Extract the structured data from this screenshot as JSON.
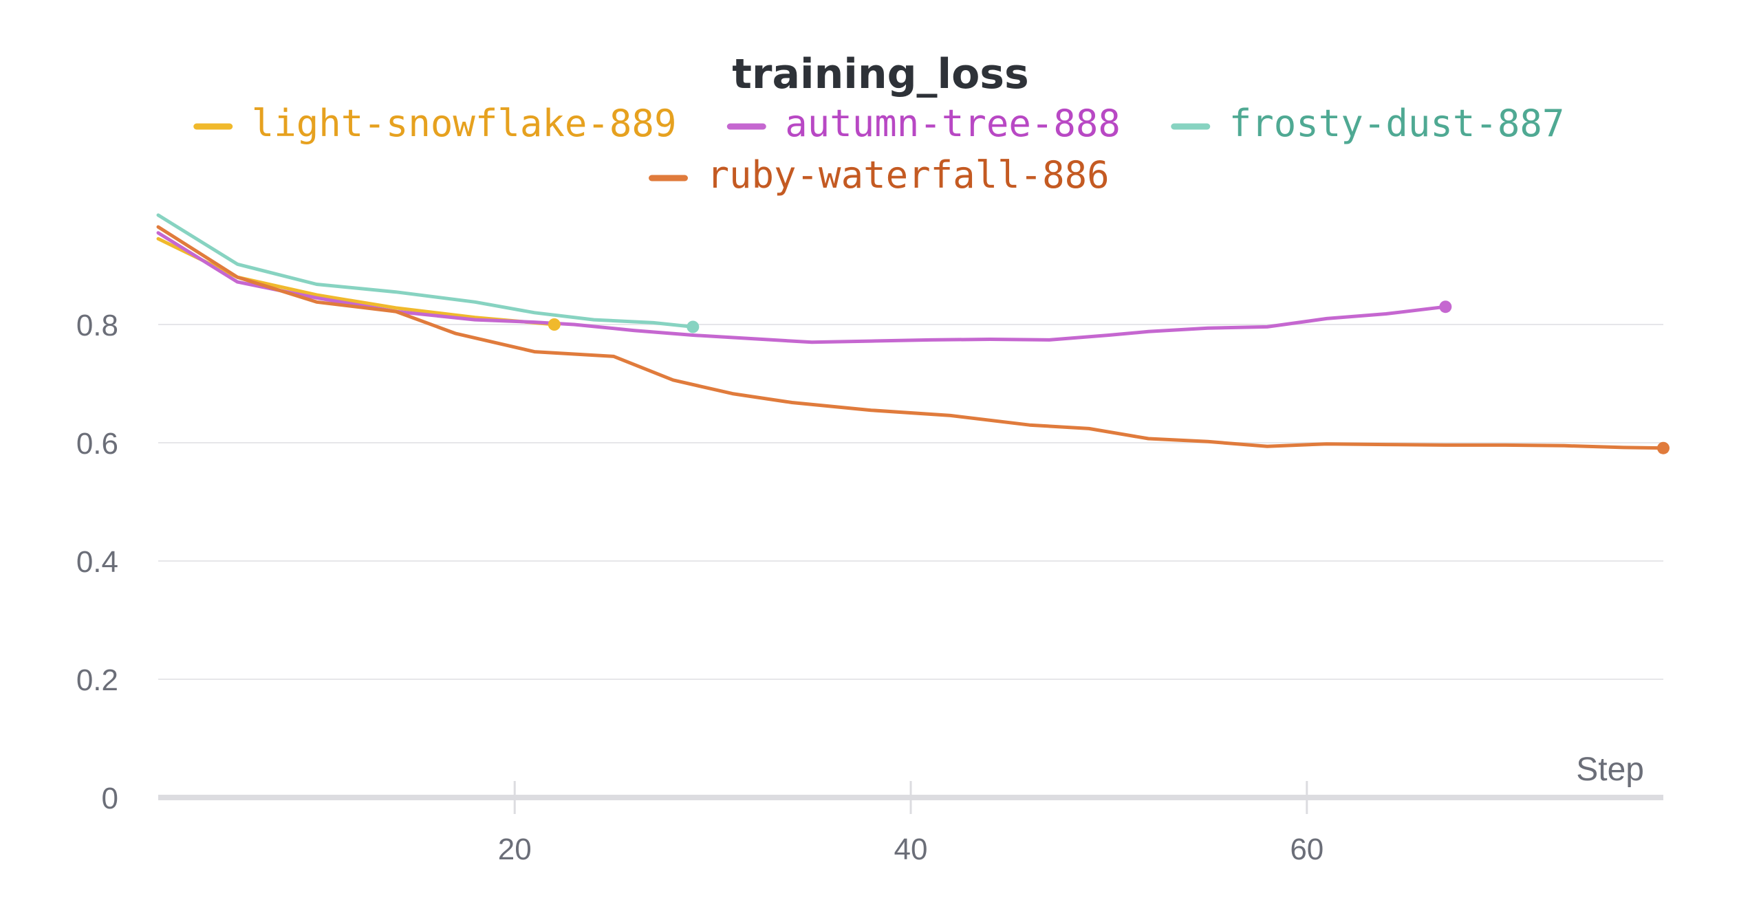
{
  "chart_data": {
    "type": "line",
    "title": "training_loss",
    "xlabel": "Step",
    "ylabel": "",
    "xlim": [
      2,
      78
    ],
    "ylim": [
      0,
      1.0
    ],
    "x_ticks": [
      20,
      40,
      60
    ],
    "y_ticks": [
      0,
      0.2,
      0.4,
      0.6,
      0.8
    ],
    "y_tick_labels": [
      "0",
      "0.2",
      "0.4",
      "0.6",
      "0.8"
    ],
    "x_tick_labels": [
      "20",
      "40",
      "60"
    ],
    "grid": "horizontal",
    "legend_position": "top",
    "series": [
      {
        "name": "light-snowflake-889",
        "color": "#f0b92c",
        "text_color": "#e6a11f",
        "x": [
          2,
          6,
          10,
          14,
          18,
          22
        ],
        "y": [
          0.945,
          0.88,
          0.85,
          0.828,
          0.812,
          0.8
        ]
      },
      {
        "name": "autumn-tree-888",
        "color": "#c567d0",
        "text_color": "#b848c4",
        "x": [
          2,
          6,
          10,
          14,
          18,
          21,
          23,
          26,
          29,
          32,
          35,
          38,
          41,
          44,
          47,
          50,
          52,
          55,
          58,
          61,
          64,
          67
        ],
        "y": [
          0.955,
          0.872,
          0.845,
          0.822,
          0.808,
          0.804,
          0.8,
          0.79,
          0.782,
          0.776,
          0.77,
          0.772,
          0.774,
          0.775,
          0.774,
          0.782,
          0.788,
          0.794,
          0.796,
          0.81,
          0.818,
          0.83
        ]
      },
      {
        "name": "frosty-dust-887",
        "color": "#87d3c1",
        "text_color": "#4fa993",
        "x": [
          2,
          6,
          10,
          14,
          18,
          21,
          24,
          27,
          29
        ],
        "y": [
          0.985,
          0.902,
          0.868,
          0.855,
          0.838,
          0.82,
          0.808,
          0.803,
          0.796
        ]
      },
      {
        "name": "ruby-waterfall-886",
        "color": "#e07b3c",
        "text_color": "#c45a22",
        "x": [
          2,
          6,
          10,
          14,
          17,
          21,
          25,
          28,
          31,
          34,
          38,
          42,
          46,
          49,
          52,
          55,
          58,
          61,
          64,
          67,
          70,
          73,
          76,
          78
        ],
        "y": [
          0.965,
          0.88,
          0.838,
          0.822,
          0.785,
          0.754,
          0.746,
          0.706,
          0.683,
          0.668,
          0.655,
          0.646,
          0.63,
          0.624,
          0.607,
          0.602,
          0.594,
          0.598,
          0.597,
          0.596,
          0.596,
          0.595,
          0.592,
          0.591
        ]
      }
    ]
  }
}
